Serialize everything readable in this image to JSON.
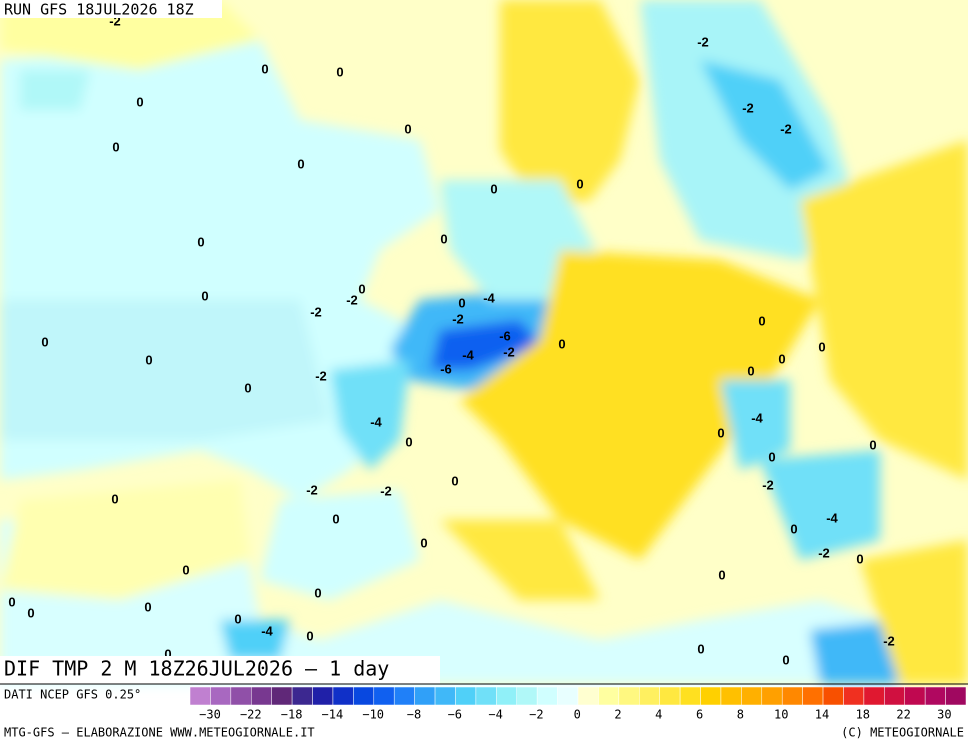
{
  "header": {
    "run": "RUN GFS 18JUL2026 18Z"
  },
  "map": {
    "title": "DIF TMP 2 M 18Z26JUL2026 — 1 day",
    "contour_labels": [
      "-2",
      "0",
      "0",
      "0",
      "0",
      "0",
      "0",
      "-2",
      "-2",
      "-2",
      "0",
      "0",
      "0",
      "0",
      "0",
      "-2",
      "0",
      "-2",
      "0",
      "-4",
      "-2",
      "-6",
      "-4",
      "-2",
      "0",
      "0",
      "0",
      "-6",
      "-2",
      "0",
      "0",
      "0",
      "0",
      "0",
      "-4",
      "-4",
      "0",
      "0",
      "0",
      "0",
      "-2",
      "0",
      "-2",
      "-2",
      "0",
      "0",
      "-4",
      "0",
      "0",
      "-2",
      "0",
      "0",
      "0",
      "0",
      "0",
      "0",
      "0",
      "0",
      "-4",
      "0",
      "-2",
      "0",
      "0",
      "0"
    ]
  },
  "colorbar": {
    "source": "DATI NCEP GFS 0.25°",
    "colors": [
      "#c080d0",
      "#a868c0",
      "#9050a8",
      "#783890",
      "#602878",
      "#3c2890",
      "#2020a8",
      "#1030c8",
      "#0848e0",
      "#1060f0",
      "#2080f8",
      "#30a0f8",
      "#40b8f8",
      "#50d0f8",
      "#70e0f8",
      "#90f0f8",
      "#b0f8f8",
      "#d0ffff",
      "#e8ffff",
      "#ffffd0",
      "#ffffa0",
      "#fff880",
      "#fff060",
      "#ffe840",
      "#ffe020",
      "#ffd000",
      "#ffc000",
      "#ffb000",
      "#ffa000",
      "#ff8800",
      "#ff7000",
      "#f85000",
      "#f03020",
      "#e01830",
      "#d01040",
      "#c00850",
      "#b00860",
      "#a00860"
    ],
    "labels": [
      "−30",
      "−22",
      "−18",
      "−14",
      "−10",
      "−8",
      "−6",
      "−4",
      "−2",
      "0",
      "2",
      "4",
      "6",
      "8",
      "10",
      "14",
      "18",
      "22",
      "30"
    ]
  },
  "footer": {
    "left": "MTG-GFS — ELABORAZIONE WWW.METEOGIORNALE.IT",
    "right": "(C) METEOGIORNALE"
  }
}
